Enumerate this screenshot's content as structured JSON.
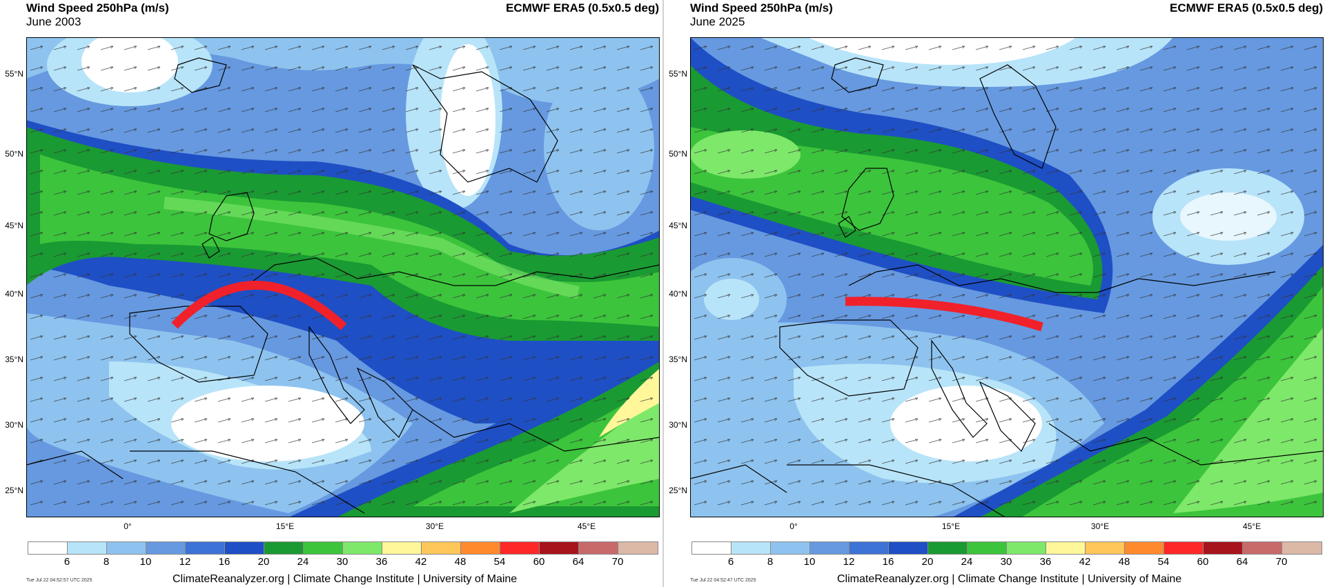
{
  "panels": [
    {
      "title": "Wind Speed 250hPa (m/s)",
      "period": "June 2003",
      "source": "ECMWF ERA5 (0.5x0.5 deg)",
      "timestamp": "Tue Jul 22 04:52:57 UTC 2025",
      "credit": "ClimateReanalyzer.org | Climate Change Institute | University of Maine"
    },
    {
      "title": "Wind Speed 250hPa (m/s)",
      "period": "June 2025",
      "source": "ECMWF ERA5 (0.5x0.5 deg)",
      "timestamp": "Tue Jul 22 04:52:47 UTC 2025",
      "credit": "ClimateReanalyzer.org | Climate Change Institute | University of Maine"
    }
  ],
  "lat_labels": [
    "55°N",
    "50°N",
    "45°N",
    "40°N",
    "35°N",
    "30°N",
    "25°N"
  ],
  "lon_labels": [
    "0°",
    "15°E",
    "30°E",
    "45°E"
  ],
  "colorbar": {
    "ticks": [
      "6",
      "8",
      "10",
      "12",
      "16",
      "20",
      "24",
      "30",
      "36",
      "42",
      "48",
      "54",
      "60",
      "64",
      "70"
    ],
    "colors": [
      "#ffffff",
      "#b8e4f9",
      "#8ec3ef",
      "#6699e0",
      "#3d72d6",
      "#1f4fc4",
      "#1a9a32",
      "#3cc43c",
      "#7ee86a",
      "#fff79a",
      "#ffc65a",
      "#ff8a2e",
      "#ff2828",
      "#a8141c",
      "#c96a6a",
      "#dcb8a6"
    ]
  },
  "icons": {
    "annotation": "jet-stream-arc",
    "vectors": "wind-arrow-icon"
  }
}
